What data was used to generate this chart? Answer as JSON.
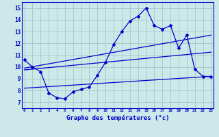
{
  "xlabel": "Graphe des températures (°c)",
  "bg_color": "#cce8e8",
  "grid_color": "#aacccc",
  "line_color": "#0000cc",
  "x_ticks": [
    0,
    1,
    2,
    3,
    4,
    5,
    6,
    7,
    8,
    9,
    10,
    11,
    12,
    13,
    14,
    15,
    16,
    17,
    18,
    19,
    20,
    21,
    22,
    23
  ],
  "y_ticks": [
    7,
    8,
    9,
    10,
    11,
    12,
    13,
    14,
    15
  ],
  "xlim": [
    -0.3,
    23.3
  ],
  "ylim": [
    6.5,
    15.5
  ],
  "line1_x": [
    0,
    1,
    2,
    3,
    4,
    5,
    6,
    7,
    8,
    9,
    10,
    11,
    12,
    13,
    14,
    15,
    16,
    17,
    18,
    19,
    20,
    21,
    22,
    23
  ],
  "line1_y": [
    10.6,
    10.0,
    9.6,
    7.8,
    7.4,
    7.3,
    7.9,
    8.1,
    8.3,
    9.3,
    10.4,
    11.9,
    13.0,
    13.9,
    14.3,
    15.0,
    13.5,
    13.2,
    13.5,
    11.6,
    12.7,
    9.8,
    9.2,
    9.2
  ],
  "line2_x": [
    0,
    23
  ],
  "line2_y": [
    9.9,
    12.7
  ],
  "line3_x": [
    0,
    23
  ],
  "line3_y": [
    9.75,
    11.25
  ],
  "line4_x": [
    0,
    23
  ],
  "line4_y": [
    8.2,
    9.2
  ]
}
